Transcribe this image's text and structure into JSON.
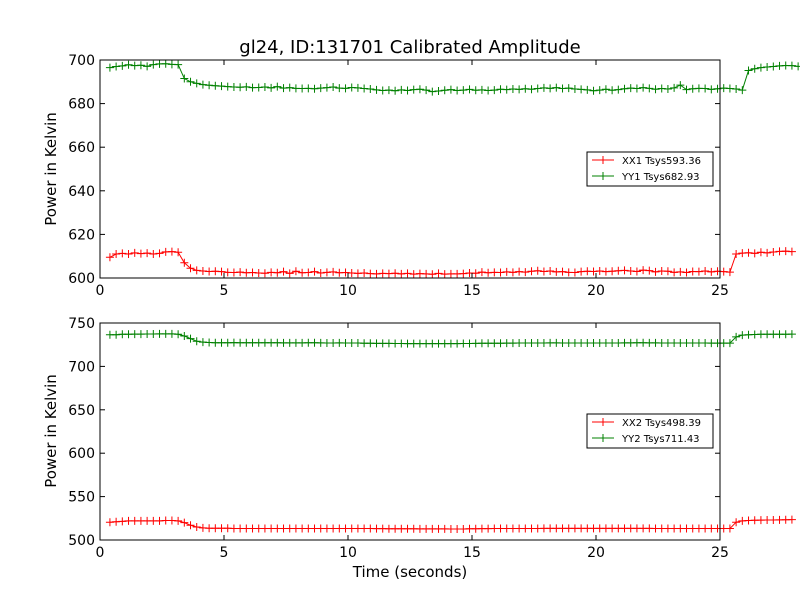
{
  "figure": {
    "title": "gl24, ID:131701 Calibrated Amplitude",
    "xlabel": "Time (seconds)"
  },
  "chart_data": [
    {
      "type": "line",
      "title": "gl24, ID:131701 Calibrated Amplitude",
      "xlabel": "",
      "ylabel": "Power in Kelvin",
      "xlim": [
        0,
        25
      ],
      "ylim": [
        600,
        700
      ],
      "xticks": [
        0,
        5,
        10,
        15,
        20,
        25
      ],
      "yticks": [
        600,
        620,
        640,
        660,
        680,
        700
      ],
      "grid": false,
      "legend_position": "right",
      "marker": "plus",
      "x_start": 0.4,
      "x_step": 0.25,
      "series": [
        {
          "name": "XX1 Tsys593.36",
          "color": "#ff0000",
          "values": [
            609.5,
            611,
            611.3,
            611,
            611.5,
            611.2,
            611.4,
            611,
            611.3,
            612,
            612.1,
            611.8,
            607,
            604.5,
            603.5,
            603.2,
            603,
            603.1,
            602.9,
            602.6,
            602.5,
            602.7,
            602.4,
            602.5,
            602.3,
            602.2,
            602.6,
            602.4,
            602.9,
            602.1,
            603.1,
            602.4,
            602.5,
            602.9,
            602.3,
            602.6,
            602.8,
            602.4,
            602.5,
            602.3,
            602.1,
            602.3,
            602.0,
            601.9,
            602.1,
            602.0,
            602.2,
            601.9,
            602.1,
            601.8,
            602.0,
            601.9,
            601.7,
            602.1,
            601.8,
            601.9,
            601.9,
            602.0,
            602.3,
            602.2,
            602.7,
            602.4,
            602.6,
            602.5,
            602.8,
            602.6,
            602.9,
            602.7,
            603.1,
            603.3,
            603.0,
            603.2,
            602.8,
            602.9,
            602.6,
            602.5,
            602.9,
            603.1,
            603.0,
            603.2,
            602.9,
            603.1,
            603.3,
            603.5,
            603.2,
            603.0,
            603.6,
            603.4,
            602.8,
            603.2,
            603.1,
            602.6,
            602.8,
            602.5,
            603.0,
            602.9,
            603.2,
            602.8,
            603.1,
            602.9,
            602.7,
            611.0,
            611.4,
            611.6,
            611.3,
            611.8,
            611.5,
            611.9,
            612.2,
            612.3,
            612.1
          ]
        },
        {
          "name": "YY1 Tsys682.93",
          "color": "#008000",
          "values": [
            696.5,
            697,
            697.3,
            697.8,
            697.4,
            697.6,
            697.1,
            697.9,
            698.2,
            698.3,
            698.0,
            697.9,
            691.5,
            690,
            689.3,
            688.7,
            688.4,
            688.2,
            688.0,
            687.8,
            687.6,
            687.5,
            687.7,
            687.3,
            687.4,
            687.6,
            687.2,
            687.8,
            687.1,
            687.3,
            687.0,
            686.9,
            687.0,
            686.8,
            687.1,
            687.3,
            687.6,
            687.1,
            687.0,
            687.4,
            687.2,
            686.9,
            686.7,
            686.3,
            686.0,
            686.2,
            685.9,
            686.3,
            686.0,
            686.4,
            686.6,
            686.2,
            685.5,
            685.8,
            686.1,
            686.4,
            686.0,
            686.2,
            686.5,
            686.1,
            686.3,
            686.0,
            686.2,
            686.6,
            686.4,
            686.7,
            686.5,
            686.8,
            686.6,
            686.9,
            687.2,
            687.0,
            687.3,
            686.9,
            687.1,
            686.7,
            686.5,
            686.3,
            685.9,
            686.2,
            686.6,
            686.1,
            686.4,
            686.8,
            687.1,
            686.9,
            687.3,
            687.0,
            686.6,
            686.9,
            686.7,
            687.2,
            688.5,
            686.4,
            686.8,
            687.0,
            686.9,
            686.5,
            686.8,
            687.1,
            686.9,
            686.7,
            686.2,
            695.2,
            696.0,
            696.5,
            696.8,
            697.0,
            697.3,
            697.5,
            697.4,
            697.1
          ]
        }
      ]
    },
    {
      "type": "line",
      "title": "",
      "xlabel": "Time (seconds)",
      "ylabel": "Power in Kelvin",
      "xlim": [
        0,
        25
      ],
      "ylim": [
        500,
        750
      ],
      "xticks": [
        0,
        5,
        10,
        15,
        20,
        25
      ],
      "yticks": [
        500,
        550,
        600,
        650,
        700,
        750
      ],
      "grid": false,
      "legend_position": "right",
      "marker": "plus",
      "x_start": 0.4,
      "x_step": 0.25,
      "series": [
        {
          "name": "XX2 Tsys498.39",
          "color": "#ff0000",
          "values": [
            520.5,
            521,
            521.5,
            522,
            522,
            522,
            522,
            522,
            522,
            522.5,
            522.5,
            522,
            520,
            517,
            515,
            514,
            513.5,
            513.5,
            513.5,
            513.5,
            513.3,
            513.3,
            513.3,
            513.3,
            513.3,
            513.3,
            513.3,
            513.3,
            513.3,
            513.3,
            513.3,
            513.3,
            513.3,
            513.3,
            513.3,
            513.3,
            513.3,
            513.3,
            513.3,
            513.2,
            513.2,
            513.2,
            513.2,
            513.1,
            513.1,
            513.0,
            513.0,
            513.0,
            513.0,
            512.9,
            512.8,
            512.8,
            512.8,
            512.8,
            512.8,
            512.7,
            512.7,
            512.7,
            512.9,
            513.0,
            513.1,
            513.1,
            513.2,
            513.2,
            513.3,
            513.3,
            513.3,
            513.3,
            513.3,
            513.3,
            513.4,
            513.4,
            513.4,
            513.4,
            513.4,
            513.4,
            513.4,
            513.4,
            513.4,
            513.4,
            513.4,
            513.4,
            513.4,
            513.4,
            513.4,
            513.4,
            513.4,
            513.4,
            513.3,
            513.3,
            513.3,
            513.3,
            513.2,
            513.2,
            513.2,
            513.2,
            513.2,
            513.2,
            513.2,
            513.2,
            513.2,
            520.5,
            522,
            522.5,
            522.7,
            522.9,
            523.0,
            523.1,
            523.2,
            523.3,
            523.5
          ]
        },
        {
          "name": "YY2 Tsys711.43",
          "color": "#008000",
          "values": [
            736.5,
            736.5,
            737,
            737,
            737.2,
            737.2,
            737.3,
            737.3,
            737.5,
            737.5,
            737.5,
            737,
            735,
            732,
            729,
            728,
            727.5,
            727.3,
            727.2,
            727.3,
            727.4,
            727.3,
            727.3,
            727.2,
            727.2,
            727.3,
            727.2,
            727.2,
            727.1,
            727.1,
            727.1,
            727.1,
            727.3,
            727.2,
            727.1,
            727.0,
            727.0,
            727.1,
            727.0,
            726.9,
            726.9,
            726.7,
            726.6,
            726.5,
            726.5,
            726.5,
            726.4,
            726.4,
            726.3,
            726.3,
            726.3,
            726.3,
            726.3,
            726.3,
            726.3,
            726.3,
            726.3,
            726.4,
            726.4,
            726.5,
            726.6,
            726.6,
            726.7,
            726.7,
            726.8,
            726.8,
            726.9,
            726.9,
            727.0,
            727.0,
            727.0,
            727.1,
            727.1,
            727.0,
            727.0,
            727.0,
            727.0,
            727.0,
            727.0,
            727.0,
            727.0,
            727.0,
            727.0,
            727.1,
            727.1,
            727.2,
            727.2,
            727.1,
            727.1,
            727.0,
            727.0,
            726.9,
            726.9,
            726.9,
            726.9,
            726.9,
            726.9,
            726.8,
            726.8,
            726.8,
            726.8,
            734,
            736,
            736.5,
            736.8,
            737.0,
            737.0,
            737.1,
            737.1,
            737.1,
            737.2
          ]
        }
      ]
    }
  ]
}
